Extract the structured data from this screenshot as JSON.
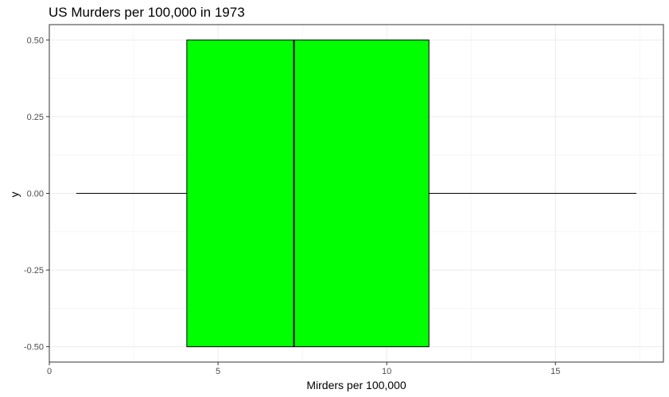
{
  "chart_data": {
    "type": "boxplot",
    "title": "US Murders per 100,000 in 1973",
    "xlabel": "Mirders per 100,000",
    "ylabel": "y",
    "xlim": [
      0,
      18.2
    ],
    "ylim": [
      -0.55,
      0.55
    ],
    "x_ticks": [
      0,
      5,
      10,
      15
    ],
    "x_tick_labels": [
      "0",
      "5",
      "10",
      "15"
    ],
    "y_ticks": [
      -0.5,
      -0.25,
      0,
      0.25,
      0.5
    ],
    "y_tick_labels": [
      "-0.50",
      "-0.25",
      "0.00",
      "0.25",
      "0.50"
    ],
    "grid": true,
    "box": {
      "min": 0.8,
      "q1": 4.075,
      "median": 7.25,
      "q3": 11.25,
      "max": 17.4,
      "y_center": 0,
      "y_halfwidth": 0.5
    },
    "colors": {
      "box_fill": "#00ff00",
      "box_outline": "#000000",
      "grid_major": "#ebebeb",
      "grid_minor": "#f5f5f5",
      "panel_border": "#333333"
    }
  }
}
